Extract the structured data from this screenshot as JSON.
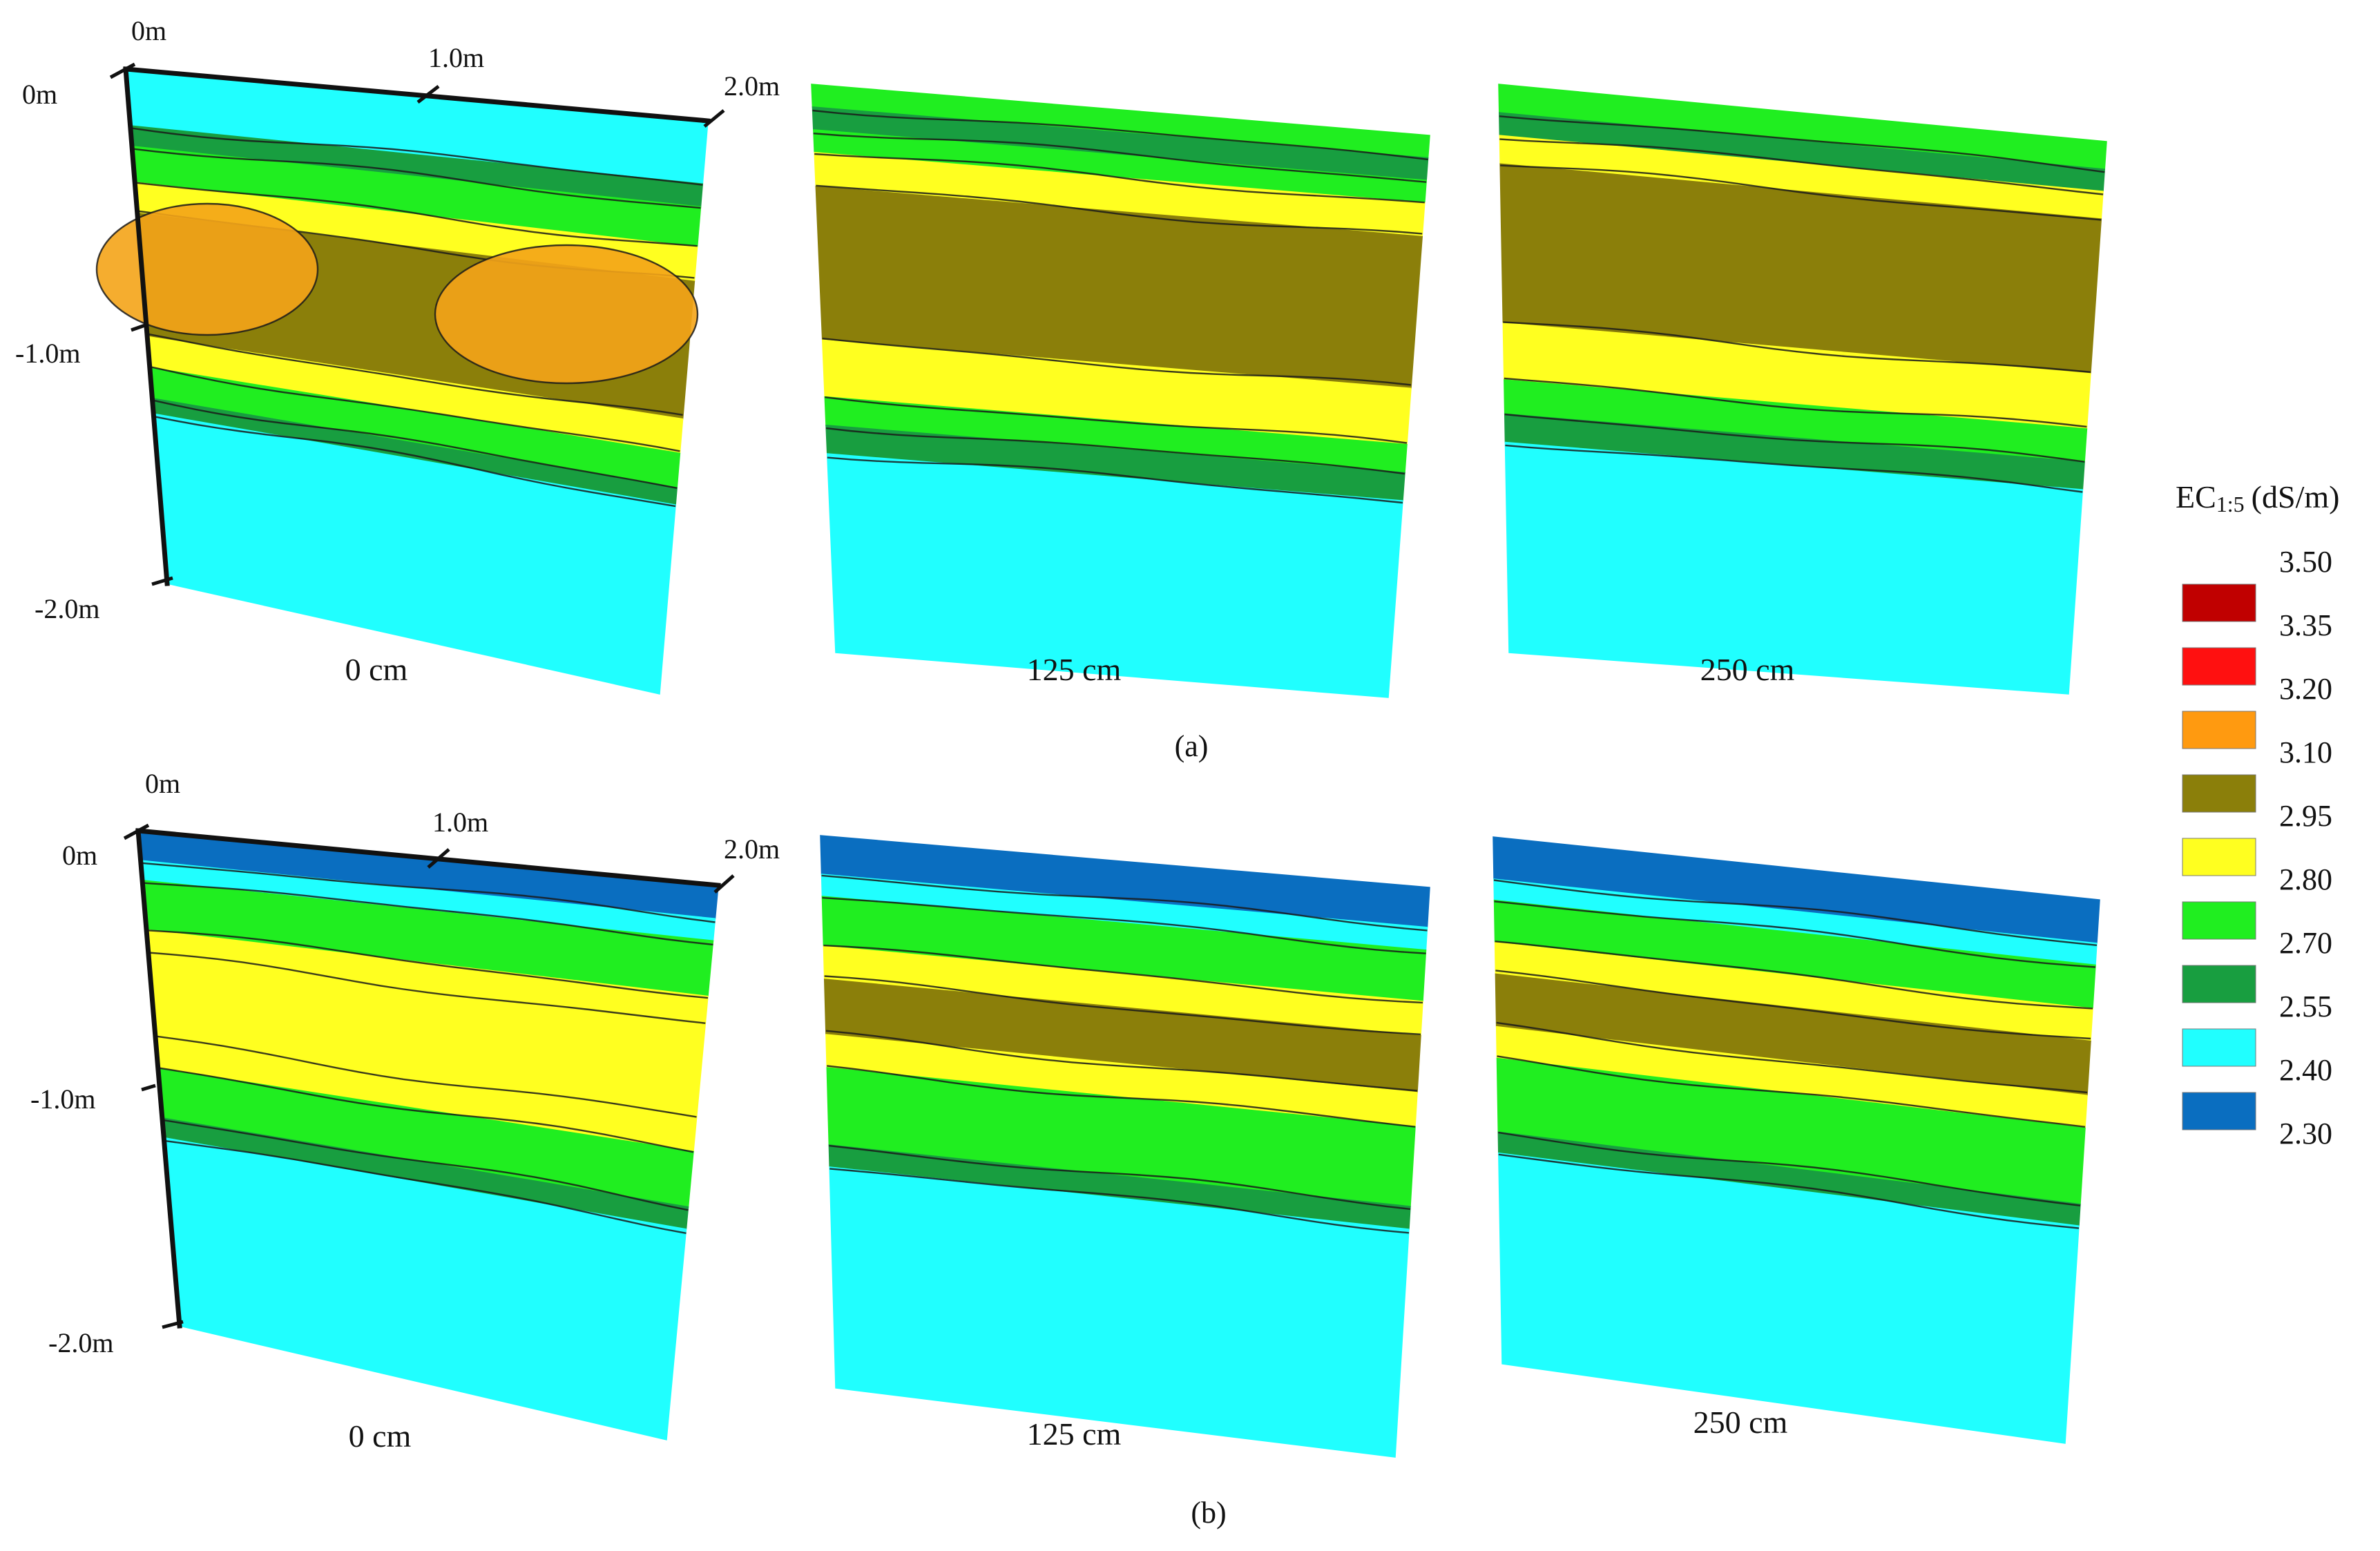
{
  "chart_data": {
    "type": "heatmap",
    "description_units": "soil depth profiles, EC1:5",
    "colorbar": {
      "title_main": "EC",
      "title_sub": "1:5",
      "title_unit": "(dS/m)",
      "ticks": [
        "3.50",
        "3.35",
        "3.20",
        "3.10",
        "2.95",
        "2.80",
        "2.70",
        "2.55",
        "2.40",
        "2.30"
      ],
      "colors": [
        "#c00000",
        "#ff1010",
        "#ff9a10",
        "#8b7f0a",
        "#ffff20",
        "#20ee20",
        "#189e40",
        "#20ffff",
        "#0a6ec0"
      ]
    },
    "axes": {
      "depth_labels": [
        "0m",
        "-1.0m",
        "-2.0m"
      ],
      "width_labels": [
        "0m",
        "1.0m",
        "2.0m"
      ],
      "depth_range_m": [
        0,
        -2.0
      ],
      "width_range_m": [
        0,
        2.0
      ]
    },
    "panels": [
      {
        "caption": "(a)",
        "profiles": [
          {
            "label": "0 cm",
            "bands": [
              {
                "from": 0.0,
                "to": 0.11,
                "value": 2.45
              },
              {
                "from": 0.11,
                "to": 0.15,
                "value": 2.65
              },
              {
                "from": 0.15,
                "to": 0.22,
                "value": 2.75
              },
              {
                "from": 0.22,
                "to": 0.28,
                "value": 2.9
              },
              {
                "from": 0.28,
                "to": 0.52,
                "value": 3.1
              },
              {
                "from": 0.52,
                "to": 0.58,
                "value": 2.9
              },
              {
                "from": 0.58,
                "to": 0.64,
                "value": 2.75
              },
              {
                "from": 0.64,
                "to": 0.67,
                "value": 2.65
              },
              {
                "from": 0.67,
                "to": 1.0,
                "value": 2.45
              }
            ]
          },
          {
            "label": "125 cm",
            "bands": [
              {
                "from": 0.0,
                "to": 0.04,
                "value": 2.75
              },
              {
                "from": 0.04,
                "to": 0.08,
                "value": 2.65
              },
              {
                "from": 0.08,
                "to": 0.12,
                "value": 2.75
              },
              {
                "from": 0.12,
                "to": 0.18,
                "value": 2.9
              },
              {
                "from": 0.18,
                "to": 0.45,
                "value": 3.1
              },
              {
                "from": 0.45,
                "to": 0.55,
                "value": 2.9
              },
              {
                "from": 0.55,
                "to": 0.6,
                "value": 2.75
              },
              {
                "from": 0.6,
                "to": 0.65,
                "value": 2.65
              },
              {
                "from": 0.65,
                "to": 1.0,
                "value": 2.45
              }
            ]
          },
          {
            "label": "250 cm",
            "bands": [
              {
                "from": 0.0,
                "to": 0.05,
                "value": 2.75
              },
              {
                "from": 0.05,
                "to": 0.09,
                "value": 2.65
              },
              {
                "from": 0.09,
                "to": 0.14,
                "value": 2.9
              },
              {
                "from": 0.14,
                "to": 0.42,
                "value": 3.1
              },
              {
                "from": 0.42,
                "to": 0.52,
                "value": 2.9
              },
              {
                "from": 0.52,
                "to": 0.58,
                "value": 2.75
              },
              {
                "from": 0.58,
                "to": 0.63,
                "value": 2.65
              },
              {
                "from": 0.63,
                "to": 1.0,
                "value": 2.45
              }
            ]
          }
        ]
      },
      {
        "caption": "(b)",
        "profiles": [
          {
            "label": "0 cm",
            "bands": [
              {
                "from": 0.0,
                "to": 0.06,
                "value": 2.35
              },
              {
                "from": 0.06,
                "to": 0.1,
                "value": 2.45
              },
              {
                "from": 0.1,
                "to": 0.2,
                "value": 2.75
              },
              {
                "from": 0.2,
                "to": 0.25,
                "value": 2.85
              },
              {
                "from": 0.25,
                "to": 0.42,
                "value": 2.95
              },
              {
                "from": 0.42,
                "to": 0.48,
                "value": 2.85
              },
              {
                "from": 0.48,
                "to": 0.58,
                "value": 2.75
              },
              {
                "from": 0.58,
                "to": 0.62,
                "value": 2.65
              },
              {
                "from": 0.62,
                "to": 1.0,
                "value": 2.45
              }
            ]
          },
          {
            "label": "125 cm",
            "bands": [
              {
                "from": 0.0,
                "to": 0.07,
                "value": 2.35
              },
              {
                "from": 0.07,
                "to": 0.11,
                "value": 2.45
              },
              {
                "from": 0.11,
                "to": 0.2,
                "value": 2.75
              },
              {
                "from": 0.2,
                "to": 0.26,
                "value": 2.85
              },
              {
                "from": 0.26,
                "to": 0.36,
                "value": 3.0
              },
              {
                "from": 0.36,
                "to": 0.42,
                "value": 2.85
              },
              {
                "from": 0.42,
                "to": 0.56,
                "value": 2.75
              },
              {
                "from": 0.56,
                "to": 0.6,
                "value": 2.65
              },
              {
                "from": 0.6,
                "to": 1.0,
                "value": 2.45
              }
            ]
          },
          {
            "label": "250 cm",
            "bands": [
              {
                "from": 0.0,
                "to": 0.08,
                "value": 2.35
              },
              {
                "from": 0.08,
                "to": 0.12,
                "value": 2.45
              },
              {
                "from": 0.12,
                "to": 0.2,
                "value": 2.75
              },
              {
                "from": 0.2,
                "to": 0.26,
                "value": 2.85
              },
              {
                "from": 0.26,
                "to": 0.36,
                "value": 3.0
              },
              {
                "from": 0.36,
                "to": 0.42,
                "value": 2.85
              },
              {
                "from": 0.42,
                "to": 0.56,
                "value": 2.75
              },
              {
                "from": 0.56,
                "to": 0.6,
                "value": 2.65
              },
              {
                "from": 0.6,
                "to": 1.0,
                "value": 2.45
              }
            ]
          }
        ]
      }
    ]
  }
}
